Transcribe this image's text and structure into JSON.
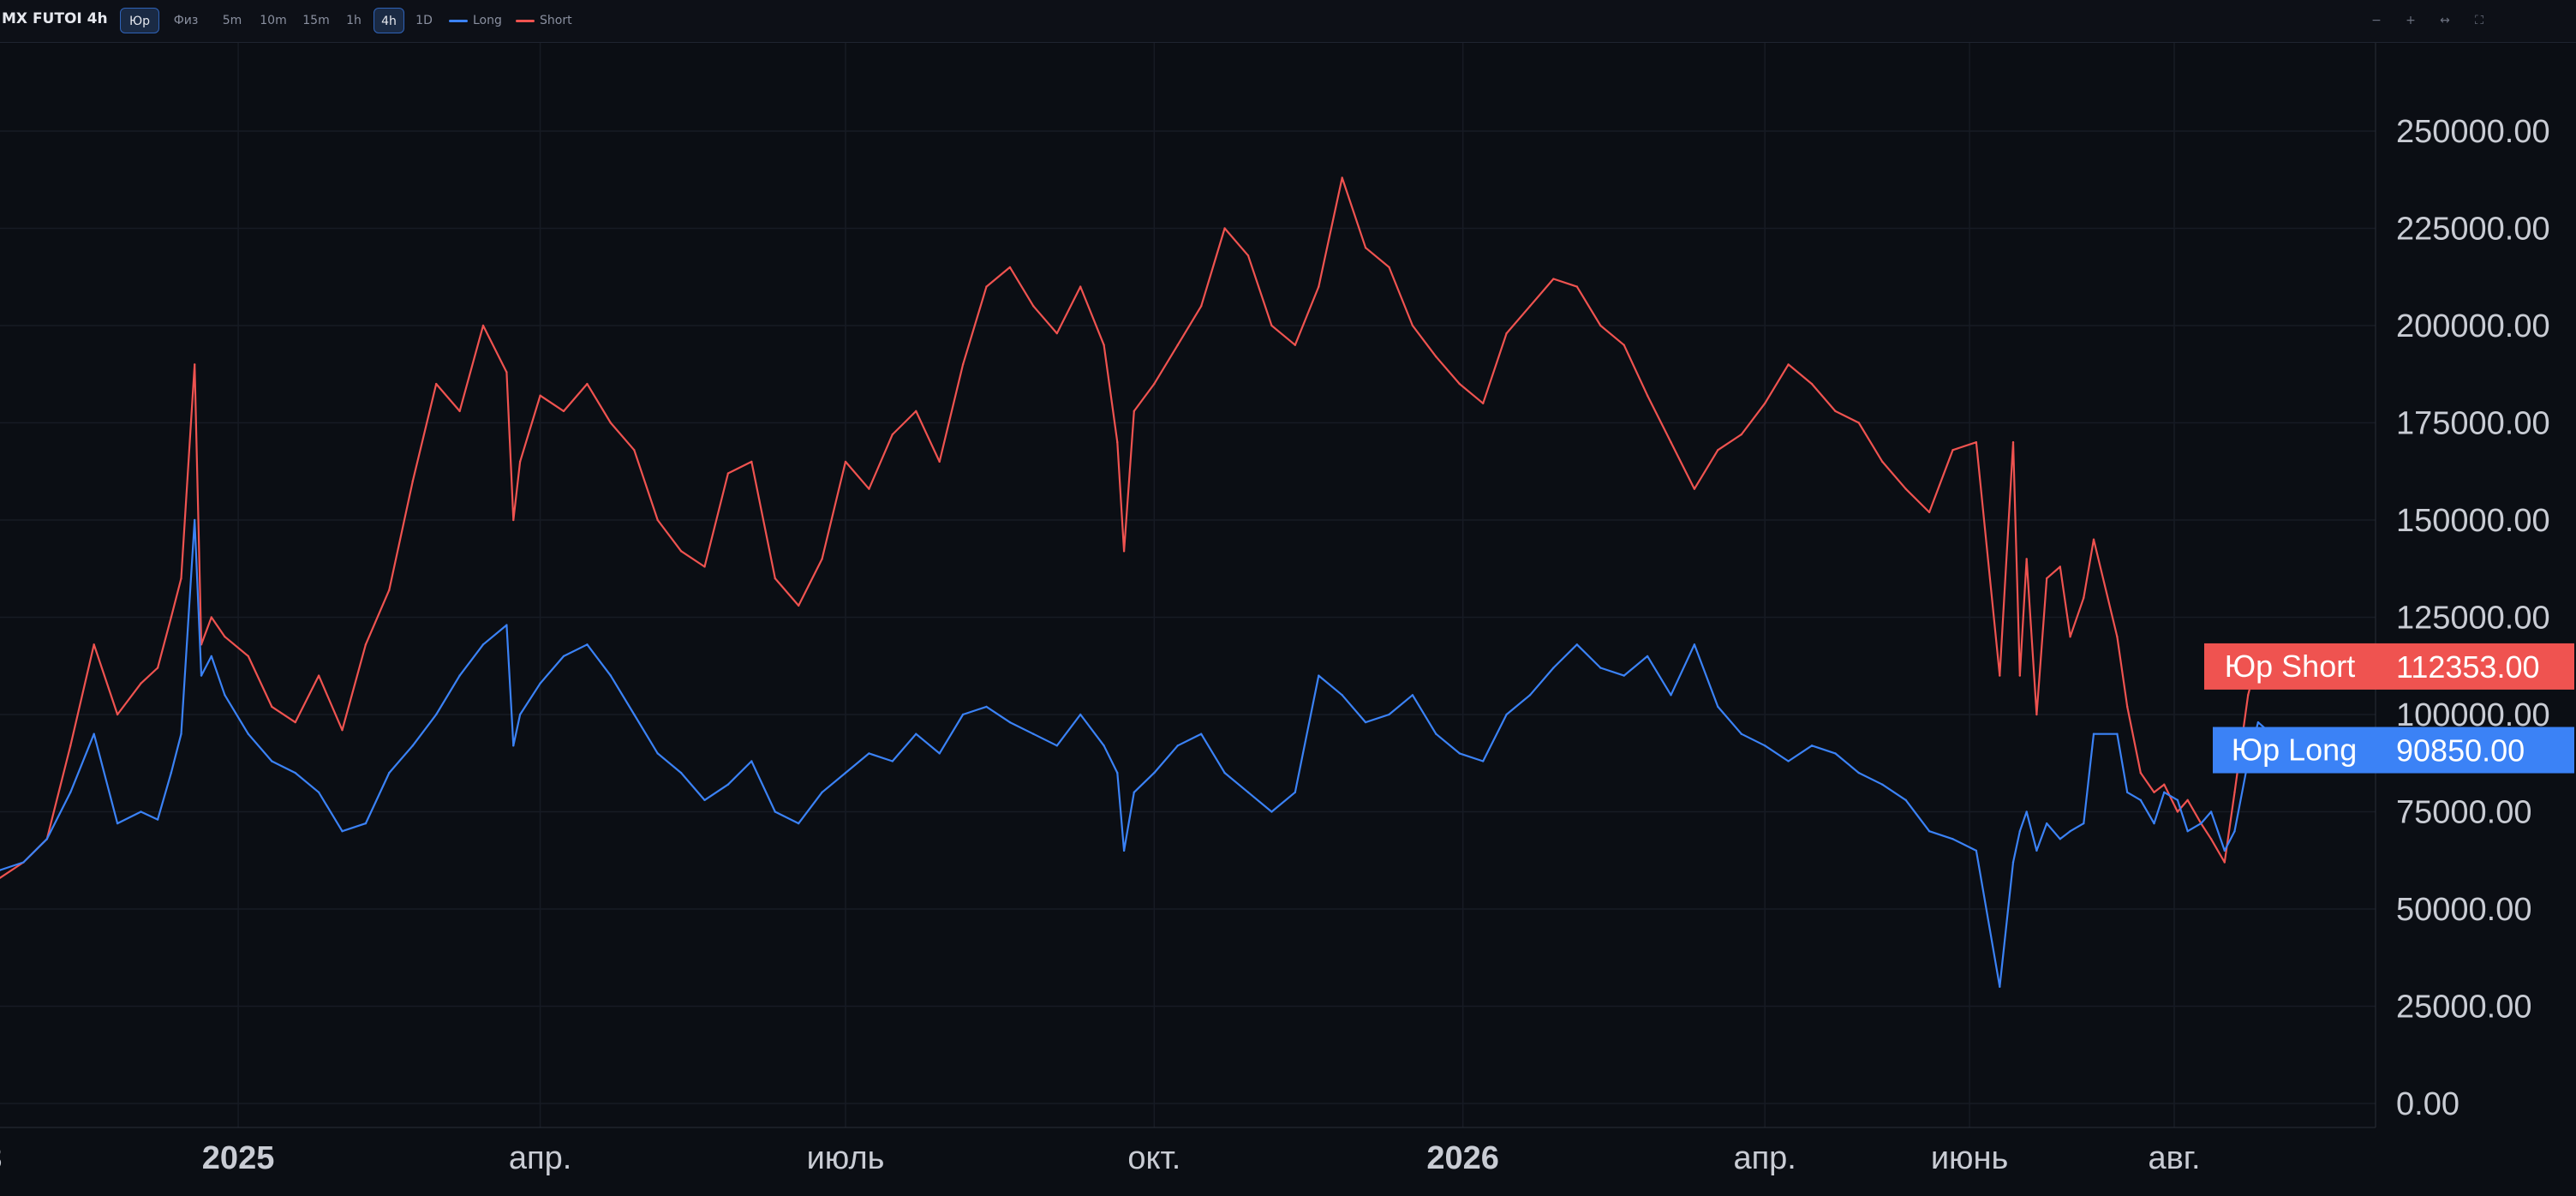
{
  "toolbar": {
    "title": "MX FUTOI 4h",
    "type_buttons": [
      {
        "label": "Юр",
        "active": true
      },
      {
        "label": "Физ",
        "active": false
      }
    ],
    "interval_buttons": [
      {
        "label": "5m",
        "active": false
      },
      {
        "label": "10m",
        "active": false
      },
      {
        "label": "15m",
        "active": false
      },
      {
        "label": "1h",
        "active": false
      },
      {
        "label": "4h",
        "active": true
      },
      {
        "label": "1D",
        "active": false
      }
    ],
    "legend": [
      {
        "label": "Long",
        "color": "#3b82f6"
      },
      {
        "label": "Short",
        "color": "#ef5350"
      }
    ],
    "window_controls": [
      "−",
      "+",
      "↔",
      "⛶"
    ]
  },
  "chart_data": {
    "type": "line",
    "title": "",
    "xlabel": "",
    "ylabel": "",
    "ylim": [
      0,
      270000
    ],
    "y_ticks": [
      "0.00",
      "25000.00",
      "50000.00",
      "75000.00",
      "100000.00",
      "125000.00",
      "150000.00",
      "175000.00",
      "200000.00",
      "225000.00",
      "250000.00"
    ],
    "y_tick_values": [
      0,
      25000,
      50000,
      75000,
      100000,
      125000,
      150000,
      175000,
      200000,
      225000,
      250000
    ],
    "x_range": [
      "2024-10-22",
      "2026-09-30"
    ],
    "x_ticks": [
      {
        "label": "3",
        "date": "2024-10-20",
        "bold": false
      },
      {
        "label": "2025",
        "date": "2025-01-01",
        "bold": true
      },
      {
        "label": "апр.",
        "date": "2025-04-01",
        "bold": false
      },
      {
        "label": "июль",
        "date": "2025-07-01",
        "bold": false
      },
      {
        "label": "окт.",
        "date": "2025-10-01",
        "bold": false
      },
      {
        "label": "2026",
        "date": "2026-01-01",
        "bold": true
      },
      {
        "label": "апр.",
        "date": "2026-04-01",
        "bold": false
      },
      {
        "label": "июнь",
        "date": "2026-06-01",
        "bold": false
      },
      {
        "label": "авг.",
        "date": "2026-08-01",
        "bold": false
      }
    ],
    "grid": true,
    "series": [
      {
        "name": "Short",
        "color": "#ef5350",
        "tag_label": "Юр Short",
        "last_value": "112353.00",
        "x": [
          "2024-10-22",
          "2024-10-29",
          "2024-11-05",
          "2024-11-12",
          "2024-11-19",
          "2024-11-26",
          "2024-12-03",
          "2024-12-08",
          "2024-12-12",
          "2024-12-15",
          "2024-12-19",
          "2024-12-21",
          "2024-12-24",
          "2024-12-28",
          "2025-01-04",
          "2025-01-11",
          "2025-01-18",
          "2025-01-25",
          "2025-02-01",
          "2025-02-08",
          "2025-02-15",
          "2025-02-22",
          "2025-03-01",
          "2025-03-08",
          "2025-03-15",
          "2025-03-22",
          "2025-03-24",
          "2025-03-26",
          "2025-04-01",
          "2025-04-08",
          "2025-04-15",
          "2025-04-22",
          "2025-04-29",
          "2025-05-06",
          "2025-05-13",
          "2025-05-20",
          "2025-05-27",
          "2025-06-03",
          "2025-06-10",
          "2025-06-17",
          "2025-06-24",
          "2025-07-01",
          "2025-07-08",
          "2025-07-15",
          "2025-07-22",
          "2025-07-29",
          "2025-08-05",
          "2025-08-12",
          "2025-08-19",
          "2025-08-26",
          "2025-09-02",
          "2025-09-09",
          "2025-09-16",
          "2025-09-20",
          "2025-09-22",
          "2025-09-25",
          "2025-10-01",
          "2025-10-08",
          "2025-10-15",
          "2025-10-22",
          "2025-10-29",
          "2025-11-05",
          "2025-11-12",
          "2025-11-19",
          "2025-11-26",
          "2025-12-03",
          "2025-12-10",
          "2025-12-17",
          "2025-12-24",
          "2025-12-31",
          "2026-01-07",
          "2026-01-14",
          "2026-01-21",
          "2026-01-28",
          "2026-02-04",
          "2026-02-11",
          "2026-02-18",
          "2026-02-25",
          "2026-03-04",
          "2026-03-11",
          "2026-03-18",
          "2026-03-25",
          "2026-04-01",
          "2026-04-08",
          "2026-04-15",
          "2026-04-22",
          "2026-04-29",
          "2026-05-06",
          "2026-05-13",
          "2026-05-20",
          "2026-05-27",
          "2026-06-03",
          "2026-06-10",
          "2026-06-14",
          "2026-06-16",
          "2026-06-18",
          "2026-06-21",
          "2026-06-24",
          "2026-06-28",
          "2026-07-01",
          "2026-07-05",
          "2026-07-08",
          "2026-07-15",
          "2026-07-18",
          "2026-07-22",
          "2026-07-26",
          "2026-07-29",
          "2026-08-02",
          "2026-08-05",
          "2026-08-09",
          "2026-08-12",
          "2026-08-16",
          "2026-08-19",
          "2026-08-23",
          "2026-08-26",
          "2026-08-30",
          "2026-09-02",
          "2026-09-05"
        ],
        "values": [
          58000,
          62000,
          68000,
          92000,
          118000,
          100000,
          108000,
          112000,
          125000,
          135000,
          190000,
          118000,
          125000,
          120000,
          115000,
          102000,
          98000,
          110000,
          96000,
          118000,
          132000,
          160000,
          185000,
          178000,
          200000,
          188000,
          150000,
          165000,
          182000,
          178000,
          185000,
          175000,
          168000,
          150000,
          142000,
          138000,
          162000,
          165000,
          135000,
          128000,
          140000,
          165000,
          158000,
          172000,
          178000,
          165000,
          190000,
          210000,
          215000,
          205000,
          198000,
          210000,
          195000,
          170000,
          142000,
          178000,
          185000,
          195000,
          205000,
          225000,
          218000,
          200000,
          195000,
          210000,
          238000,
          220000,
          215000,
          200000,
          192000,
          185000,
          180000,
          198000,
          205000,
          212000,
          210000,
          200000,
          195000,
          182000,
          170000,
          158000,
          168000,
          172000,
          180000,
          190000,
          185000,
          178000,
          175000,
          165000,
          158000,
          152000,
          168000,
          170000,
          110000,
          170000,
          110000,
          140000,
          100000,
          135000,
          138000,
          120000,
          130000,
          145000,
          120000,
          102000,
          85000,
          80000,
          82000,
          75000,
          78000,
          72000,
          68000,
          62000,
          80000,
          105000,
          115000,
          110000,
          115000,
          112353
        ]
      },
      {
        "name": "Long",
        "color": "#3b82f6",
        "tag_label": "Юр Long",
        "last_value": "90850.00",
        "x": [
          "2024-10-22",
          "2024-10-29",
          "2024-11-05",
          "2024-11-12",
          "2024-11-19",
          "2024-11-26",
          "2024-12-03",
          "2024-12-08",
          "2024-12-12",
          "2024-12-15",
          "2024-12-19",
          "2024-12-21",
          "2024-12-24",
          "2024-12-28",
          "2025-01-04",
          "2025-01-11",
          "2025-01-18",
          "2025-01-25",
          "2025-02-01",
          "2025-02-08",
          "2025-02-15",
          "2025-02-22",
          "2025-03-01",
          "2025-03-08",
          "2025-03-15",
          "2025-03-22",
          "2025-03-24",
          "2025-03-26",
          "2025-04-01",
          "2025-04-08",
          "2025-04-15",
          "2025-04-22",
          "2025-04-29",
          "2025-05-06",
          "2025-05-13",
          "2025-05-20",
          "2025-05-27",
          "2025-06-03",
          "2025-06-10",
          "2025-06-17",
          "2025-06-24",
          "2025-07-01",
          "2025-07-08",
          "2025-07-15",
          "2025-07-22",
          "2025-07-29",
          "2025-08-05",
          "2025-08-12",
          "2025-08-19",
          "2025-08-26",
          "2025-09-02",
          "2025-09-09",
          "2025-09-16",
          "2025-09-20",
          "2025-09-22",
          "2025-09-25",
          "2025-10-01",
          "2025-10-08",
          "2025-10-15",
          "2025-10-22",
          "2025-10-29",
          "2025-11-05",
          "2025-11-12",
          "2025-11-19",
          "2025-11-26",
          "2025-12-03",
          "2025-12-10",
          "2025-12-17",
          "2025-12-24",
          "2025-12-31",
          "2026-01-07",
          "2026-01-14",
          "2026-01-21",
          "2026-01-28",
          "2026-02-04",
          "2026-02-11",
          "2026-02-18",
          "2026-02-25",
          "2026-03-04",
          "2026-03-11",
          "2026-03-18",
          "2026-03-25",
          "2026-04-01",
          "2026-04-08",
          "2026-04-15",
          "2026-04-22",
          "2026-04-29",
          "2026-05-06",
          "2026-05-13",
          "2026-05-20",
          "2026-05-27",
          "2026-06-03",
          "2026-06-10",
          "2026-06-14",
          "2026-06-16",
          "2026-06-18",
          "2026-06-21",
          "2026-06-24",
          "2026-06-28",
          "2026-07-01",
          "2026-07-05",
          "2026-07-08",
          "2026-07-15",
          "2026-07-18",
          "2026-07-22",
          "2026-07-26",
          "2026-07-29",
          "2026-08-02",
          "2026-08-05",
          "2026-08-09",
          "2026-08-12",
          "2026-08-16",
          "2026-08-19",
          "2026-08-23",
          "2026-08-26",
          "2026-08-30",
          "2026-09-02",
          "2026-09-05"
        ],
        "values": [
          60000,
          62000,
          68000,
          80000,
          95000,
          72000,
          75000,
          73000,
          85000,
          95000,
          150000,
          110000,
          115000,
          105000,
          95000,
          88000,
          85000,
          80000,
          70000,
          72000,
          85000,
          92000,
          100000,
          110000,
          118000,
          123000,
          92000,
          100000,
          108000,
          115000,
          118000,
          110000,
          100000,
          90000,
          85000,
          78000,
          82000,
          88000,
          75000,
          72000,
          80000,
          85000,
          90000,
          88000,
          95000,
          90000,
          100000,
          102000,
          98000,
          95000,
          92000,
          100000,
          92000,
          85000,
          65000,
          80000,
          85000,
          92000,
          95000,
          85000,
          80000,
          75000,
          80000,
          110000,
          105000,
          98000,
          100000,
          105000,
          95000,
          90000,
          88000,
          100000,
          105000,
          112000,
          118000,
          112000,
          110000,
          115000,
          105000,
          118000,
          102000,
          95000,
          92000,
          88000,
          92000,
          90000,
          85000,
          82000,
          78000,
          70000,
          68000,
          65000,
          30000,
          62000,
          70000,
          75000,
          65000,
          72000,
          68000,
          70000,
          72000,
          95000,
          95000,
          80000,
          78000,
          72000,
          80000,
          78000,
          70000,
          72000,
          75000,
          65000,
          70000,
          88000,
          98000,
          95000,
          92000,
          90850
        ]
      }
    ]
  }
}
